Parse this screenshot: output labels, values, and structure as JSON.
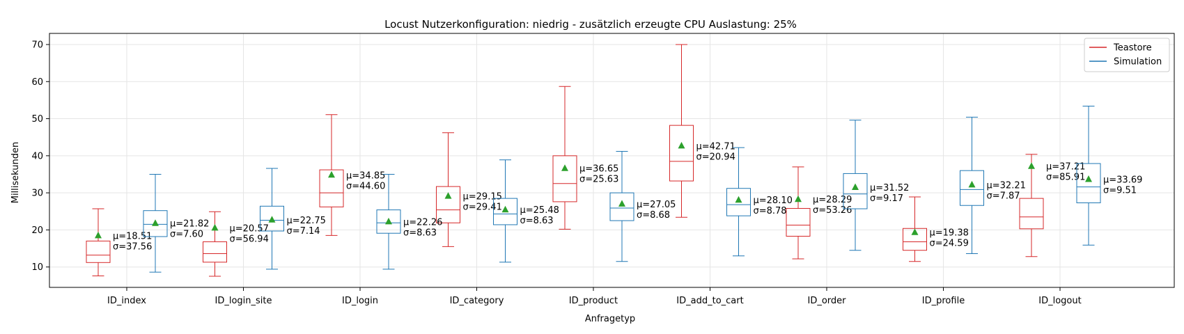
{
  "chart_data": {
    "type": "box",
    "title": "Locust Nutzerkonfiguration: niedrig - zusätzlich erzeugte CPU Auslastung: 25%",
    "xlabel": "Anfragetyp",
    "ylabel": "Millisekunden",
    "ylim": [
      4.5,
      73
    ],
    "yticks": [
      10,
      20,
      30,
      40,
      50,
      60,
      70
    ],
    "grid": true,
    "legend_position": "top-right",
    "categories": [
      "ID_index",
      "ID_login_site",
      "ID_login",
      "ID_category",
      "ID_product",
      "ID_add_to_cart",
      "ID_order",
      "ID_profile",
      "ID_logout"
    ],
    "series": [
      {
        "name": "Teastore",
        "color": "#d62728",
        "boxes": [
          {
            "whislo": 7.6,
            "q1": 11.2,
            "med": 13.2,
            "q3": 17.0,
            "whishi": 25.7,
            "mean": 18.51,
            "mean_label": "μ=18.51",
            "std_label": "σ=37.56"
          },
          {
            "whislo": 7.5,
            "q1": 11.3,
            "med": 13.6,
            "q3": 16.8,
            "whishi": 24.9,
            "mean": 20.57,
            "mean_label": "μ=20.57",
            "std_label": "σ=56.94"
          },
          {
            "whislo": 18.5,
            "q1": 26.2,
            "med": 30.0,
            "q3": 36.2,
            "whishi": 51.1,
            "mean": 34.85,
            "mean_label": "μ=34.85",
            "std_label": "σ=44.60"
          },
          {
            "whislo": 15.5,
            "q1": 21.9,
            "med": 25.4,
            "q3": 31.7,
            "whishi": 46.2,
            "mean": 29.15,
            "mean_label": "μ=29.15",
            "std_label": "σ=29.41"
          },
          {
            "whislo": 20.2,
            "q1": 27.6,
            "med": 32.5,
            "q3": 40.0,
            "whishi": 58.7,
            "mean": 36.65,
            "mean_label": "μ=36.65",
            "std_label": "σ=25.63"
          },
          {
            "whislo": 23.4,
            "q1": 33.2,
            "med": 38.5,
            "q3": 48.2,
            "whishi": 70.0,
            "mean": 42.71,
            "mean_label": "μ=42.71",
            "std_label": "σ=20.94"
          },
          {
            "whislo": 12.2,
            "q1": 18.3,
            "med": 21.3,
            "q3": 25.8,
            "whishi": 37.0,
            "mean": 28.29,
            "mean_label": "μ=28.29",
            "std_label": "σ=53.26"
          },
          {
            "whislo": 11.5,
            "q1": 14.5,
            "med": 16.8,
            "q3": 20.4,
            "whishi": 28.9,
            "mean": 19.38,
            "mean_label": "μ=19.38",
            "std_label": "σ=24.59"
          },
          {
            "whislo": 12.8,
            "q1": 20.3,
            "med": 23.5,
            "q3": 28.5,
            "whishi": 40.4,
            "mean": 37.21,
            "mean_label": "μ=37.21",
            "std_label": "σ=85.91"
          }
        ]
      },
      {
        "name": "Simulation",
        "color": "#1f77b4",
        "boxes": [
          {
            "whislo": 8.6,
            "q1": 18.2,
            "med": 21.5,
            "q3": 25.2,
            "whishi": 35.0,
            "mean": 21.82,
            "mean_label": "μ=21.82",
            "std_label": "σ=7.60"
          },
          {
            "whislo": 9.4,
            "q1": 19.7,
            "med": 22.6,
            "q3": 26.4,
            "whishi": 36.6,
            "mean": 22.75,
            "mean_label": "μ=22.75",
            "std_label": "σ=7.14"
          },
          {
            "whislo": 9.4,
            "q1": 19.1,
            "med": 21.9,
            "q3": 25.4,
            "whishi": 35.0,
            "mean": 22.26,
            "mean_label": "μ=22.26",
            "std_label": "σ=8.63"
          },
          {
            "whislo": 11.3,
            "q1": 21.4,
            "med": 24.3,
            "q3": 28.5,
            "whishi": 38.9,
            "mean": 25.48,
            "mean_label": "μ=25.48",
            "std_label": "σ=8.63"
          },
          {
            "whislo": 11.5,
            "q1": 22.5,
            "med": 25.9,
            "q3": 30.0,
            "whishi": 41.2,
            "mean": 27.05,
            "mean_label": "μ=27.05",
            "std_label": "σ=8.68"
          },
          {
            "whislo": 13.0,
            "q1": 23.8,
            "med": 26.8,
            "q3": 31.2,
            "whishi": 42.2,
            "mean": 28.1,
            "mean_label": "μ=28.10",
            "std_label": "σ=8.78"
          },
          {
            "whislo": 14.5,
            "q1": 25.7,
            "med": 29.7,
            "q3": 35.2,
            "whishi": 49.6,
            "mean": 31.52,
            "mean_label": "μ=31.52",
            "std_label": "σ=9.17"
          },
          {
            "whislo": 13.6,
            "q1": 26.6,
            "med": 30.9,
            "q3": 36.0,
            "whishi": 50.4,
            "mean": 32.21,
            "mean_label": "μ=32.21",
            "std_label": "σ=7.87"
          },
          {
            "whislo": 15.9,
            "q1": 27.3,
            "med": 31.6,
            "q3": 37.9,
            "whishi": 53.4,
            "mean": 33.69,
            "mean_label": "μ=33.69",
            "std_label": "σ=9.51"
          }
        ]
      }
    ],
    "mean_marker_color": "#2ca02c",
    "grid_color": "#e5e5e5"
  }
}
